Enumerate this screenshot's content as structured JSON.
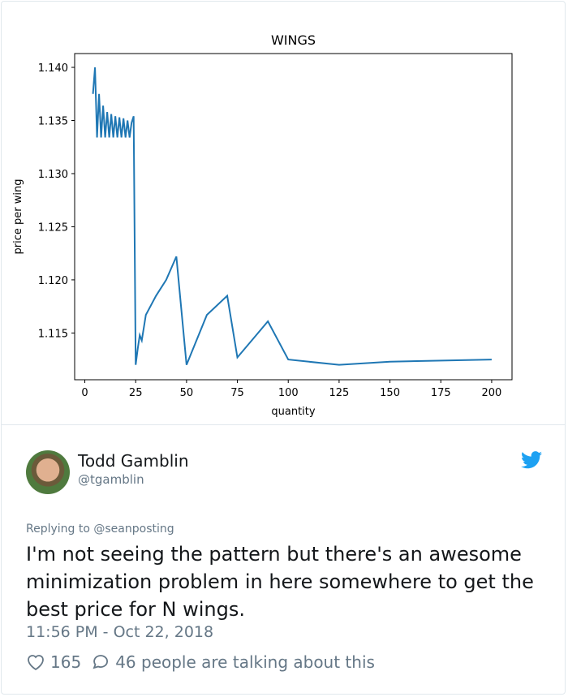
{
  "tweet": {
    "author_name": "Todd Gamblin",
    "author_handle": "@tgamblin",
    "replying_to": "Replying to @seanposting",
    "text": "I'm not seeing the pattern but there's an awesome minimization problem in here somewhere to get the best price for N wings.",
    "timestamp": "11:56 PM - Oct 22, 2018",
    "likes": "165",
    "talking": "46 people are talking about this",
    "icons": [
      "twitter-bird-icon",
      "heart-icon",
      "comment-icon"
    ],
    "accent_color": "#1da1f2"
  },
  "chart_data": {
    "type": "line",
    "title": "WINGS",
    "xlabel": "quantity",
    "ylabel": "price per wing",
    "xlim": [
      -5,
      210
    ],
    "ylim": [
      1.1106,
      1.1413
    ],
    "xticks": [
      0,
      25,
      50,
      75,
      100,
      125,
      150,
      175,
      200
    ],
    "yticks": [
      1.115,
      1.12,
      1.125,
      1.13,
      1.135,
      1.14
    ],
    "ytick_labels": [
      "1.115",
      "1.120",
      "1.125",
      "1.130",
      "1.135",
      "1.140"
    ],
    "grid": false,
    "color": "#1f77b4",
    "x": [
      4,
      5,
      6,
      7,
      8,
      9,
      10,
      11,
      12,
      13,
      14,
      15,
      16,
      17,
      18,
      19,
      20,
      21,
      22,
      23,
      24,
      25,
      26,
      27,
      28,
      30,
      35,
      40,
      45,
      50,
      60,
      70,
      75,
      90,
      100,
      125,
      150,
      200
    ],
    "y": [
      1.1375,
      1.14,
      1.1334,
      1.1375,
      1.1334,
      1.1364,
      1.1334,
      1.1358,
      1.1334,
      1.1356,
      1.1334,
      1.1354,
      1.1334,
      1.1353,
      1.1334,
      1.1352,
      1.1334,
      1.135,
      1.1334,
      1.1348,
      1.1354,
      1.112,
      1.1135,
      1.1148,
      1.1143,
      1.1167,
      1.1185,
      1.12,
      1.1222,
      1.112,
      1.1167,
      1.1185,
      1.1127,
      1.1161,
      1.1125,
      1.112,
      1.1123,
      1.1125
    ]
  }
}
